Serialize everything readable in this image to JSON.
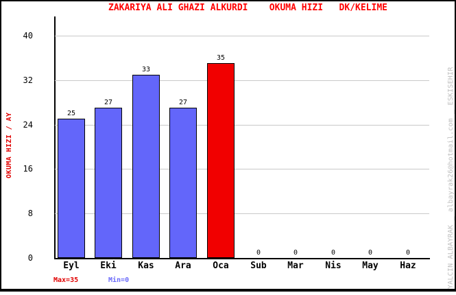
{
  "header": {
    "title": "ZAKARIYA ALI GHAZI ALKURDI    OKUMA HIZI   DK/KELIME"
  },
  "colors": {
    "title_red": "#FF0000",
    "bar_blue": "#6366FA",
    "bar_red": "#F10000",
    "grid_gray": "#C8C8C8",
    "axis_black": "#000000",
    "max_label_red": "#E00000",
    "min_label_blue": "#6B6BFA",
    "watermark_gray": "#C0C0C0"
  },
  "chart_data": {
    "type": "bar",
    "title": "ZAKARIYA ALI GHAZI ALKURDI    OKUMA HIZI   DK/KELIME",
    "xlabel": "",
    "ylabel": "OKUMA HIZI / AY",
    "categories": [
      "Eyl",
      "Eki",
      "Kas",
      "Ara",
      "Oca",
      "Sub",
      "Mar",
      "Nis",
      "May",
      "Haz"
    ],
    "values": [
      25,
      27,
      33,
      27,
      35,
      0,
      0,
      0,
      0,
      0
    ],
    "yticks": [
      0,
      8,
      16,
      24,
      32,
      40
    ],
    "ylim": [
      0,
      43.5
    ],
    "grid": true,
    "legend_position": "none",
    "value_labels": true,
    "highlight_index": 4,
    "highlight_value": 35
  },
  "footer": {
    "max_label": "Max=35",
    "min_label": "Min=0"
  },
  "watermark": "YALCIN ALBAYRAK _ albayrak26@hotmail.com _ ESKISEHIR"
}
